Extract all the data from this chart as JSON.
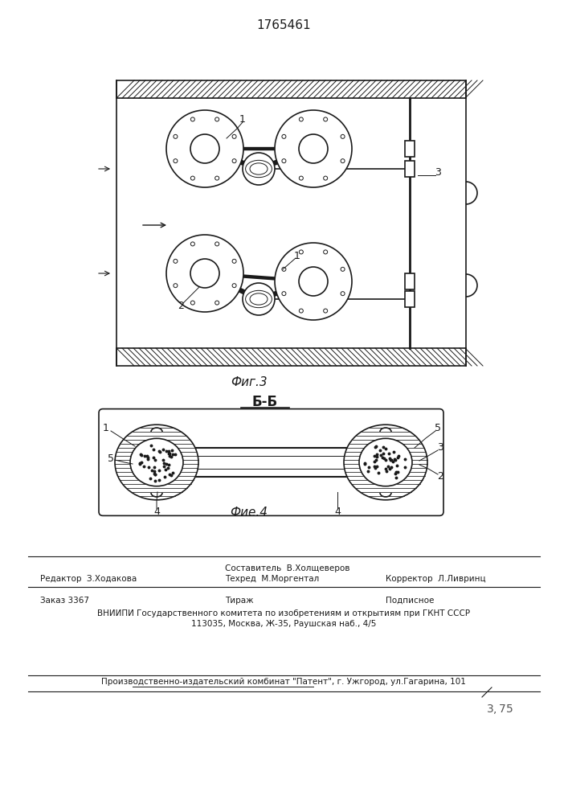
{
  "title": "1765461",
  "fig3_label": "Фиг.3",
  "fig4_label": "Фие.4",
  "section_label": "Б-Б",
  "line_color": "#1a1a1a",
  "editor_line": "Редактор  З.Ходакова",
  "compiler_line": "Составитель  В.Холщеверов",
  "tech_line": "Техред  М.Моргентал",
  "corrector_line": "Корректор  Л.Ливринц",
  "order_line": "Заказ 3367",
  "tirazh_line": "Тираж",
  "podpisnoe_line": "Подписное",
  "vniip_line": "ВНИИПИ Государственного комитета по изобретениям и открытиям при ГКНТ СССР",
  "address_line": "113035, Москва, Ж-35, Раушская наб., 4/5",
  "factory_line": "Производственно-издательский комбинат \"Патент\", г. Ужгород, ул.Гагарина, 101"
}
